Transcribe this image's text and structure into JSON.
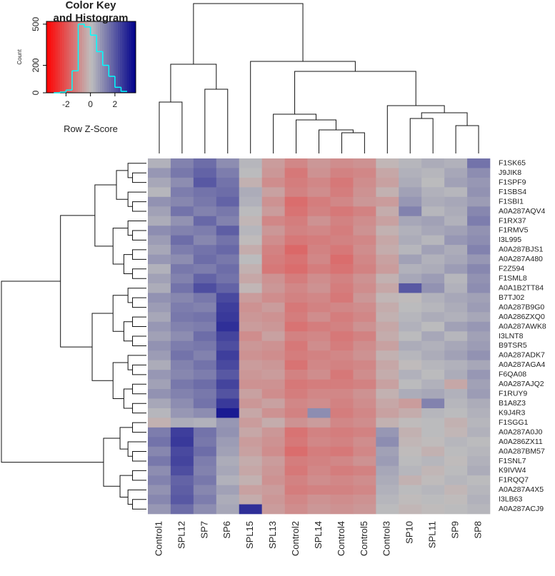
{
  "chart_data": {
    "type": "heatmap",
    "columns": [
      "Control1",
      "SPL12",
      "SP7",
      "SP6",
      "SPL15",
      "SPL13",
      "Control2",
      "SPL14",
      "Control4",
      "Control5",
      "Control3",
      "SP10",
      "SPL11",
      "SP9",
      "SP8"
    ],
    "rows": [
      "F1SK65",
      "J9JIK8",
      "F1SPF9",
      "F1SBS4",
      "F1SBI1",
      "A0A287AQV4",
      "F1RX37",
      "F1RMV5",
      "I3L995",
      "A0A287BJS1",
      "A0A287A480",
      "F2Z594",
      "F1SML8",
      "A0A1B2TT84",
      "B7TJ02",
      "A0A287B9G0",
      "A0A286ZXQ0",
      "A0A287AWK8",
      "I3LNT8",
      "B9TSR5",
      "A0A287ADK7",
      "A0A287AGA4",
      "F6QA08",
      "A0A287AJQ2",
      "F1RUY9",
      "B1A8Z3",
      "K9J4R3",
      "F1SGG1",
      "A0A287A0J0",
      "A0A286ZX11",
      "A0A287BM57",
      "F1SNL7",
      "K9IVW4",
      "F1RQQ7",
      "A0A287A4X5",
      "I3LB63",
      "A0A287ACJ9"
    ],
    "values": [
      [
        0.3,
        1.2,
        1.6,
        1.0,
        0.2,
        -0.6,
        -1.0,
        -0.7,
        -0.9,
        -0.8,
        -0.1,
        0.2,
        0.4,
        0.3,
        1.5
      ],
      [
        0.8,
        1.4,
        1.8,
        1.3,
        0.1,
        -0.7,
        -1.3,
        -0.8,
        -1.1,
        -1.0,
        -0.4,
        0.3,
        0.2,
        0.5,
        1.0
      ],
      [
        0.5,
        1.0,
        2.0,
        1.5,
        -0.2,
        -0.9,
        -1.2,
        -1.0,
        -1.3,
        -0.9,
        -0.5,
        0.4,
        0.1,
        0.6,
        0.8
      ],
      [
        0.2,
        1.3,
        1.5,
        1.6,
        0.4,
        -0.5,
        -1.1,
        -0.9,
        -1.2,
        -0.8,
        -0.2,
        0.6,
        0.3,
        0.2,
        0.9
      ],
      [
        0.9,
        1.1,
        1.4,
        1.8,
        0.3,
        -0.8,
        -1.5,
        -1.2,
        -1.0,
        -0.7,
        -0.6,
        0.8,
        0.4,
        0.5,
        0.7
      ],
      [
        0.6,
        1.5,
        1.2,
        1.4,
        0.1,
        -0.6,
        -1.4,
        -1.1,
        -1.3,
        -1.1,
        -0.3,
        1.2,
        0.2,
        0.4,
        1.1
      ],
      [
        0.4,
        0.9,
        1.7,
        1.2,
        -0.1,
        -1.0,
        -1.2,
        -0.8,
        -1.1,
        -0.9,
        -0.5,
        0.5,
        0.6,
        0.3,
        1.3
      ],
      [
        1.0,
        1.2,
        1.3,
        1.9,
        0.2,
        -0.7,
        -1.1,
        -1.0,
        -1.2,
        -0.8,
        -0.2,
        0.3,
        0.5,
        0.6,
        0.9
      ],
      [
        0.7,
        1.6,
        1.1,
        1.5,
        0.0,
        -0.9,
        -1.3,
        -1.2,
        -1.1,
        -1.0,
        -0.4,
        0.4,
        0.2,
        0.8,
        1.0
      ],
      [
        0.5,
        1.3,
        1.5,
        1.7,
        -0.3,
        -1.1,
        -1.6,
        -1.1,
        -1.3,
        -0.9,
        -0.3,
        0.2,
        0.6,
        0.4,
        1.2
      ],
      [
        0.8,
        1.0,
        1.6,
        1.4,
        0.1,
        -1.2,
        -1.4,
        -1.0,
        -1.5,
        -1.0,
        -0.5,
        0.6,
        0.3,
        0.5,
        0.8
      ],
      [
        0.3,
        1.4,
        1.3,
        1.6,
        -0.2,
        -1.3,
        -1.5,
        -1.2,
        -1.4,
        -1.1,
        -0.6,
        0.3,
        0.4,
        0.7,
        1.1
      ],
      [
        0.6,
        1.2,
        1.8,
        1.5,
        -0.4,
        -0.8,
        -1.2,
        -0.9,
        -1.1,
        -0.8,
        -0.2,
        0.5,
        0.7,
        0.2,
        0.9
      ],
      [
        0.4,
        1.5,
        2.2,
        1.8,
        -0.1,
        -0.7,
        -1.0,
        -0.8,
        -1.2,
        -0.9,
        -0.4,
        2.0,
        0.9,
        0.3,
        1.0
      ],
      [
        0.9,
        1.1,
        1.4,
        2.3,
        -0.6,
        -0.9,
        -1.1,
        -1.0,
        -1.3,
        -0.7,
        -0.1,
        0.0,
        0.3,
        0.5,
        0.6
      ],
      [
        0.7,
        1.3,
        1.2,
        2.5,
        -0.8,
        -0.6,
        -1.3,
        -1.1,
        -1.0,
        -0.9,
        -0.3,
        0.1,
        0.2,
        0.4,
        0.7
      ],
      [
        0.5,
        1.4,
        1.5,
        2.6,
        -0.7,
        -0.8,
        -1.2,
        -0.9,
        -1.2,
        -1.0,
        -0.2,
        0.2,
        0.4,
        0.3,
        0.5
      ],
      [
        0.8,
        1.2,
        1.3,
        2.8,
        -0.6,
        -0.7,
        -1.4,
        -1.2,
        -1.1,
        -0.8,
        -0.4,
        0.3,
        0.1,
        0.6,
        0.8
      ],
      [
        0.6,
        1.0,
        1.6,
        2.4,
        -0.9,
        -0.5,
        -1.1,
        -1.0,
        -1.3,
        -1.1,
        -0.3,
        0.1,
        0.5,
        0.2,
        0.6
      ],
      [
        0.9,
        1.3,
        1.4,
        2.2,
        -0.7,
        -0.8,
        -1.3,
        -0.9,
        -1.2,
        -0.9,
        -0.5,
        0.4,
        0.3,
        0.5,
        0.7
      ],
      [
        0.7,
        1.5,
        1.2,
        2.5,
        -0.8,
        -0.9,
        -1.2,
        -1.1,
        -1.0,
        -0.8,
        -0.2,
        0.2,
        0.4,
        0.6,
        0.9
      ],
      [
        0.4,
        1.2,
        1.5,
        2.3,
        -0.6,
        -0.7,
        -1.4,
        -1.0,
        -1.1,
        -1.0,
        -0.4,
        0.0,
        0.2,
        0.3,
        0.5
      ],
      [
        0.8,
        1.1,
        1.3,
        2.0,
        -0.7,
        -0.6,
        -1.1,
        -0.9,
        -1.3,
        -0.9,
        -0.3,
        0.3,
        0.1,
        0.4,
        0.8
      ],
      [
        0.6,
        1.4,
        1.6,
        2.4,
        -0.8,
        -0.8,
        -1.3,
        -1.2,
        -1.2,
        -1.1,
        -0.5,
        0.1,
        0.3,
        -0.4,
        0.6
      ],
      [
        0.9,
        1.2,
        1.4,
        2.1,
        -0.5,
        -0.9,
        -1.2,
        -1.0,
        -1.0,
        -0.8,
        -0.2,
        0.4,
        0.5,
        0.3,
        0.7
      ],
      [
        0.5,
        1.0,
        1.5,
        2.6,
        -0.7,
        -0.5,
        -1.0,
        -0.9,
        -1.1,
        -0.9,
        -0.4,
        -0.6,
        1.2,
        0.2,
        0.4
      ],
      [
        0.2,
        0.8,
        1.0,
        3.2,
        -0.4,
        -0.8,
        -1.1,
        1.0,
        -1.2,
        -1.0,
        -0.5,
        -0.3,
        0.2,
        0.1,
        0.3
      ],
      [
        -0.2,
        0.4,
        0.3,
        0.8,
        -0.6,
        -0.3,
        -0.8,
        -0.6,
        -1.0,
        -0.9,
        -0.2,
        0.0,
        0.1,
        -0.2,
        0.2
      ],
      [
        1.3,
        2.5,
        1.5,
        0.9,
        -0.4,
        -0.7,
        -1.4,
        -1.1,
        -1.2,
        -1.1,
        0.8,
        -0.2,
        0.1,
        -0.1,
        0.3
      ],
      [
        1.5,
        2.6,
        1.4,
        0.7,
        -0.6,
        -0.8,
        -1.3,
        -1.0,
        -1.1,
        -0.9,
        1.0,
        -0.1,
        0.0,
        0.2,
        0.1
      ],
      [
        1.1,
        2.3,
        1.6,
        0.6,
        -0.5,
        -0.9,
        -1.5,
        -1.2,
        -1.3,
        -1.0,
        0.6,
        0.0,
        -0.2,
        0.1,
        0.2
      ],
      [
        1.4,
        2.4,
        1.3,
        0.4,
        -0.3,
        -0.6,
        -1.2,
        -1.1,
        -1.0,
        -0.8,
        0.7,
        0.1,
        0.2,
        0.0,
        0.3
      ],
      [
        1.0,
        2.2,
        1.2,
        0.5,
        -0.4,
        -0.7,
        -1.3,
        -1.0,
        -1.2,
        -1.1,
        0.5,
        0.2,
        -0.1,
        0.1,
        0.4
      ],
      [
        1.2,
        1.8,
        1.4,
        0.3,
        -0.2,
        -0.8,
        -1.1,
        -0.9,
        -1.0,
        -0.9,
        0.4,
        -0.2,
        0.0,
        0.2,
        0.1
      ],
      [
        0.9,
        1.9,
        1.1,
        0.6,
        -0.5,
        -0.6,
        -1.2,
        -1.1,
        -1.1,
        -1.0,
        0.3,
        0.1,
        0.2,
        -0.1,
        0.2
      ],
      [
        1.1,
        2.0,
        1.3,
        0.4,
        -0.3,
        -0.7,
        -1.0,
        -0.8,
        -0.9,
        -0.8,
        0.2,
        0.0,
        0.1,
        0.0,
        0.3
      ],
      [
        0.8,
        1.6,
        1.0,
        0.5,
        2.8,
        -0.6,
        -0.9,
        -0.7,
        -0.8,
        -0.7,
        0.1,
        -0.1,
        0.0,
        0.1,
        0.2
      ]
    ],
    "colors": [
      "#ff0000",
      "#bebebe",
      "#00008b"
    ],
    "color_key": {
      "title": [
        "Color Key",
        "and Histogram"
      ],
      "xlabel": "Row Z-Score",
      "ylabel": "Count",
      "xlim": [
        -3.6,
        3.7
      ],
      "xticks": [
        -2,
        0,
        2
      ],
      "ylim": [
        0,
        520
      ],
      "yticks": [
        0,
        200,
        500
      ],
      "line_color": "#00ffff",
      "bins": [
        -3,
        -2.5,
        -2,
        -1.5,
        -1,
        -0.5,
        0,
        0.5,
        1,
        1.5,
        2,
        2.5,
        3
      ],
      "counts": [
        0,
        5,
        20,
        160,
        500,
        480,
        420,
        300,
        200,
        120,
        40,
        10
      ]
    }
  }
}
